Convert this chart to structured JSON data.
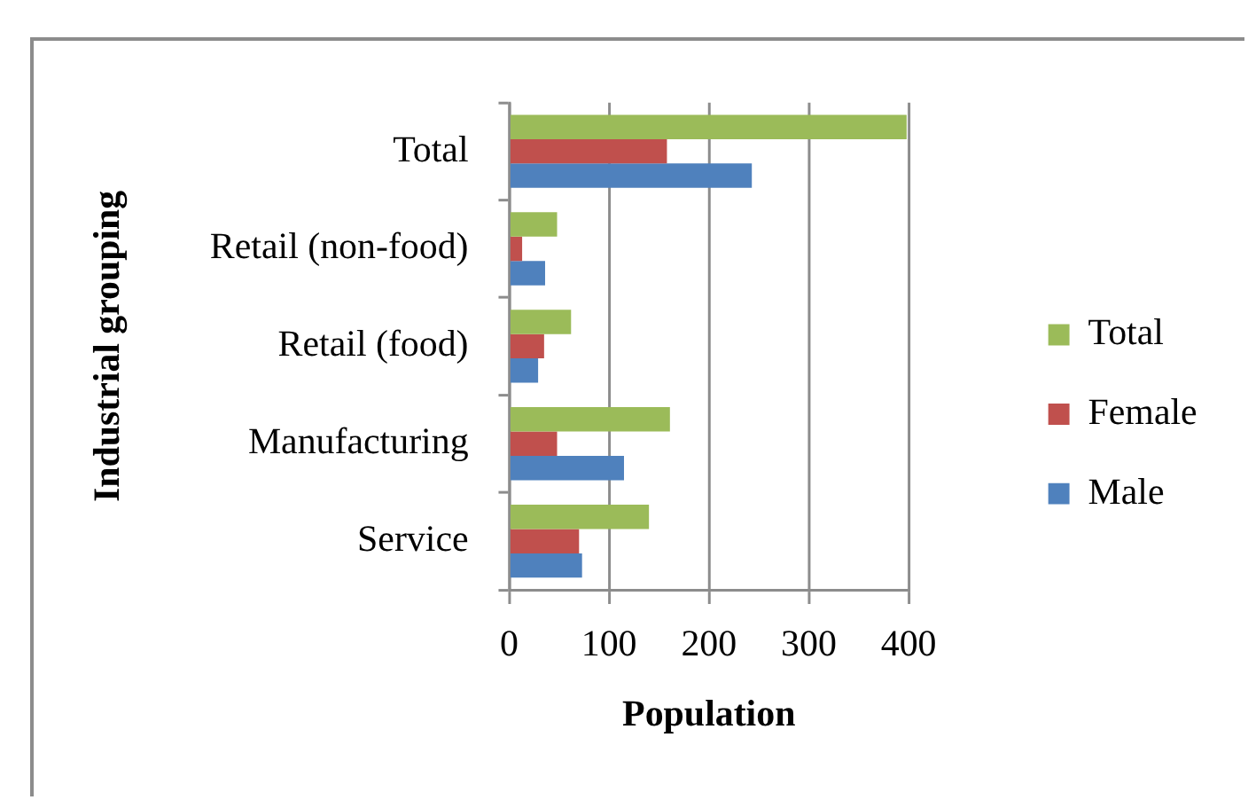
{
  "chart_data": {
    "type": "bar",
    "orientation": "horizontal",
    "xlabel": "Population",
    "ylabel": "Industrial grouping",
    "categories": [
      "Total",
      "Retail (non-food)",
      "Retail (food)",
      "Manufacturing",
      "Service"
    ],
    "series": [
      {
        "name": "Total",
        "color": "#9bbb59",
        "values": [
          398,
          48,
          62,
          161,
          140
        ]
      },
      {
        "name": "Female",
        "color": "#c0504d",
        "values": [
          158,
          13,
          35,
          48,
          70
        ]
      },
      {
        "name": "Male",
        "color": "#4f81bd",
        "values": [
          243,
          36,
          29,
          115,
          73
        ]
      }
    ],
    "xlim": [
      0,
      400
    ],
    "xticks": [
      0,
      100,
      200,
      300,
      400
    ],
    "grid": "x",
    "legend": "right"
  }
}
